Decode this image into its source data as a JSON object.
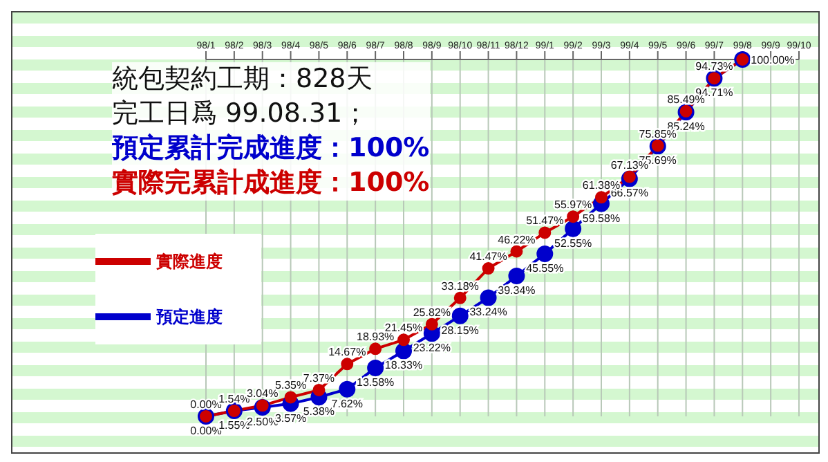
{
  "chart_data": {
    "type": "line",
    "categories": [
      "98/1",
      "98/2",
      "98/3",
      "98/4",
      "98/5",
      "98/6",
      "98/7",
      "98/8",
      "98/9",
      "98/10",
      "98/11",
      "98/12",
      "99/1",
      "99/2",
      "99/3",
      "99/4",
      "99/5",
      "99/6",
      "99/7",
      "99/8",
      "99/9",
      "99/10"
    ],
    "series": [
      {
        "name": "預定進度",
        "color": "#0000cc",
        "values": [
          0.0,
          1.55,
          2.5,
          3.57,
          5.38,
          7.62,
          13.58,
          18.33,
          23.22,
          28.15,
          33.24,
          39.34,
          45.55,
          52.55,
          59.58,
          66.57,
          75.69,
          85.24,
          94.71,
          100.0,
          null,
          null
        ],
        "value_labels": [
          "0.00%",
          "1.55%",
          "2.50%",
          "3.57%",
          "5.38%",
          "7.62%",
          "13.58%",
          "18.33%",
          "23.22%",
          "28.15%",
          "33.24%",
          "39.34%",
          "45.55%",
          "52.55%",
          "59.58%",
          "66.57%",
          "75.69%",
          "85.24%",
          "94.71%",
          null,
          null,
          null
        ]
      },
      {
        "name": "實際進度",
        "color": "#cc0000",
        "values": [
          0.0,
          1.54,
          3.04,
          5.35,
          7.37,
          14.67,
          18.93,
          21.45,
          25.82,
          33.18,
          41.47,
          46.22,
          51.47,
          55.97,
          61.38,
          67.13,
          75.85,
          85.49,
          94.73,
          100.0,
          null,
          null
        ],
        "value_labels": [
          "0.00%",
          "1.54%",
          "3.04%",
          "5.35%",
          "7.37%",
          "14.67%",
          "18.93%",
          "21.45%",
          "25.82%",
          "33.18%",
          "41.47%",
          "46.22%",
          "51.47%",
          "55.97%",
          "61.38%",
          "67.13%",
          "75.85%",
          "85.49%",
          "94.73%",
          "100.00%",
          null,
          null
        ]
      }
    ],
    "annotations": [
      "統包契約工期：828天",
      "完工日爲 99.08.31；",
      "預定累計完成進度：100%",
      "實際完累計成進度：100%"
    ],
    "marker": "circle",
    "grid": "x",
    "legend": "left",
    "tick_labels": "x"
  }
}
